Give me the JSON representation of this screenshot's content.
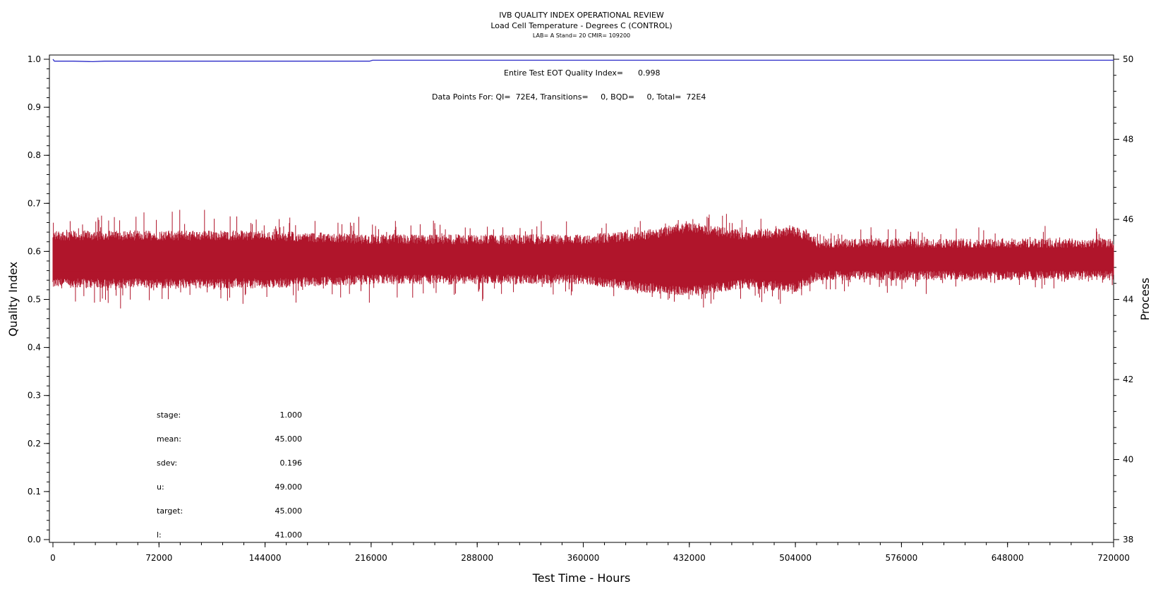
{
  "chart_data": {
    "type": "line",
    "title": "IVB QUALITY INDEX OPERATIONAL REVIEW",
    "subtitle": "Load Cell Temperature - Degrees C (CONTROL)",
    "subtitle2": "LAB= A Stand= 20 CMIR= 109200",
    "xlabel": "Test Time - Hours",
    "ylabel_left": "Quality Index",
    "ylabel_right": "Process",
    "xlim": [
      0,
      720000
    ],
    "ylim_left": [
      0,
      1
    ],
    "ylim_right": [
      38,
      50
    ],
    "x_ticks": [
      "0",
      "72000",
      "144000",
      "216000",
      "288000",
      "360000",
      "432000",
      "504000",
      "576000",
      "648000",
      "720000"
    ],
    "y_left_ticks": [
      "0.0",
      "0.1",
      "0.2",
      "0.3",
      "0.4",
      "0.5",
      "0.6",
      "0.7",
      "0.8",
      "0.9",
      "1.0"
    ],
    "y_right_ticks": [
      "38",
      "40",
      "42",
      "44",
      "46",
      "48",
      "50"
    ],
    "annotations": {
      "eot_label": "Entire Test EOT Quality Index=",
      "eot_value": "0.998",
      "points_line": "Data Points For: QI=  72E4, Transitions=     0, BQD=     0, Total=  72E4"
    },
    "stats": [
      {
        "label": "stage:",
        "value": "1.000"
      },
      {
        "label": "mean:",
        "value": "45.000"
      },
      {
        "label": "sdev:",
        "value": "0.196"
      },
      {
        "label": "u:",
        "value": "49.000"
      },
      {
        "label": "target:",
        "value": "45.000"
      },
      {
        "label": "l:",
        "value": "41.000"
      }
    ],
    "series": [
      {
        "axis": "left",
        "color": "#2b2bc8",
        "x": [
          0,
          1000,
          3000,
          14000,
          27000,
          35000,
          60000,
          120000,
          215000,
          217000,
          400000,
          720000
        ],
        "y": [
          1.0,
          0.996,
          0.996,
          0.996,
          0.995,
          0.996,
          0.996,
          0.996,
          0.996,
          0.998,
          0.998,
          0.998
        ]
      },
      {
        "axis": "right",
        "color": "#b0152b",
        "mean": 45.0,
        "sdev": 0.196,
        "x_range": [
          0,
          720000
        ],
        "envelope": {
          "x": [
            0,
            72000,
            144000,
            216000,
            288000,
            360000,
            400000,
            432000,
            470000,
            504000,
            520000,
            576000,
            648000,
            720000
          ],
          "upper": [
            45.6,
            45.6,
            45.6,
            45.5,
            45.5,
            45.5,
            45.6,
            45.8,
            45.6,
            45.7,
            45.4,
            45.4,
            45.4,
            45.4
          ],
          "lower": [
            44.4,
            44.4,
            44.4,
            44.5,
            44.5,
            44.5,
            44.3,
            44.2,
            44.4,
            44.3,
            44.6,
            44.6,
            44.6,
            44.6
          ],
          "max": [
            46.0,
            46.3,
            46.0,
            46.0,
            45.9,
            45.9,
            45.9,
            46.3,
            46.0,
            46.0,
            45.7,
            45.7,
            45.8,
            45.8
          ],
          "min": [
            43.8,
            43.9,
            43.9,
            44.0,
            44.0,
            44.0,
            44.0,
            43.8,
            44.0,
            43.9,
            44.2,
            44.2,
            44.3,
            44.3
          ]
        }
      }
    ]
  }
}
